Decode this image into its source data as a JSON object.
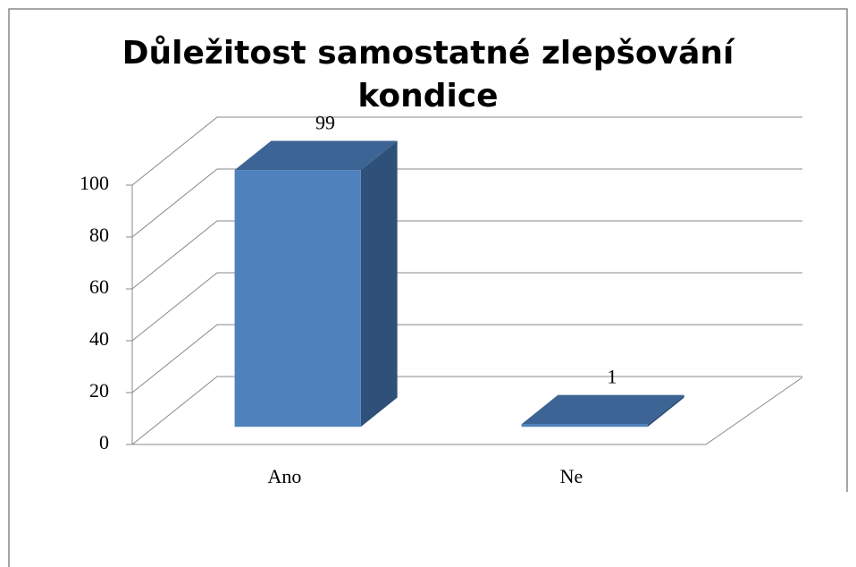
{
  "chart_data": {
    "type": "bar3d",
    "title": "Důležitost samostatné zlepšování kondice",
    "categories": [
      "Ano",
      "Ne"
    ],
    "values": [
      99,
      1
    ],
    "color": "#4f81bd",
    "ylim": [
      0,
      100
    ],
    "yticks": [
      0,
      20,
      40,
      60,
      80,
      100
    ],
    "grid": true
  }
}
